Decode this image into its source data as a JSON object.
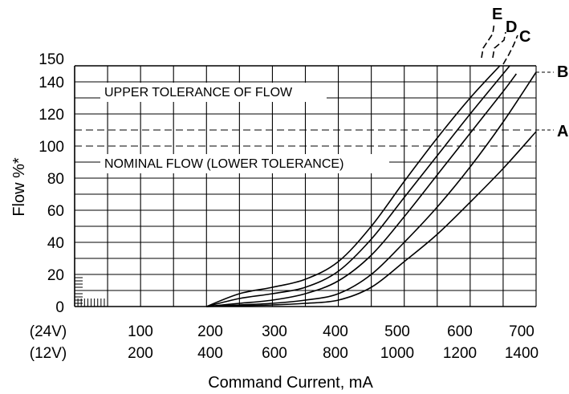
{
  "chart_data": {
    "type": "line",
    "xlabel": "Command Current, mA",
    "ylabel": "Flow %*",
    "xlim": [
      0,
      700
    ],
    "ylim": [
      0,
      150
    ],
    "x_tick_labels_24v": [
      "(24V)",
      "100",
      "200",
      "300",
      "400",
      "500",
      "600",
      "700"
    ],
    "x_tick_labels_12v": [
      "(12V)",
      "200",
      "400",
      "600",
      "800",
      "1000",
      "1200",
      "1400"
    ],
    "y_tick_labels": [
      "0",
      "20",
      "40",
      "60",
      "80",
      "100",
      "120",
      "140",
      "150"
    ],
    "reference_lines": [
      {
        "label": "UPPER TOLERANCE OF FLOW",
        "y": 110
      },
      {
        "label": "NOMINAL FLOW (LOWER TOLERANCE)",
        "y": 100
      }
    ],
    "series": [
      {
        "name": "E",
        "points": [
          [
            200,
            0
          ],
          [
            250,
            8
          ],
          [
            300,
            12
          ],
          [
            350,
            17
          ],
          [
            400,
            28
          ],
          [
            450,
            50
          ],
          [
            500,
            78
          ],
          [
            550,
            105
          ],
          [
            600,
            130
          ],
          [
            645,
            150
          ]
        ]
      },
      {
        "name": "D",
        "points": [
          [
            200,
            0
          ],
          [
            250,
            5
          ],
          [
            300,
            8
          ],
          [
            350,
            12
          ],
          [
            400,
            22
          ],
          [
            450,
            42
          ],
          [
            500,
            68
          ],
          [
            550,
            94
          ],
          [
            600,
            120
          ],
          [
            660,
            150
          ]
        ]
      },
      {
        "name": "C",
        "points": [
          [
            200,
            0
          ],
          [
            250,
            2
          ],
          [
            300,
            4
          ],
          [
            350,
            8
          ],
          [
            400,
            16
          ],
          [
            450,
            32
          ],
          [
            500,
            56
          ],
          [
            550,
            82
          ],
          [
            600,
            108
          ],
          [
            650,
            134
          ],
          [
            670,
            145
          ]
        ]
      },
      {
        "name": "B",
        "points": [
          [
            200,
            0
          ],
          [
            250,
            1
          ],
          [
            300,
            2
          ],
          [
            350,
            4
          ],
          [
            400,
            8
          ],
          [
            450,
            20
          ],
          [
            500,
            40
          ],
          [
            550,
            62
          ],
          [
            600,
            87
          ],
          [
            650,
            115
          ],
          [
            700,
            146
          ]
        ]
      },
      {
        "name": "A",
        "points": [
          [
            200,
            0
          ],
          [
            250,
            0.5
          ],
          [
            300,
            1
          ],
          [
            350,
            2
          ],
          [
            400,
            4
          ],
          [
            450,
            12
          ],
          [
            500,
            28
          ],
          [
            550,
            45
          ],
          [
            600,
            65
          ],
          [
            650,
            86
          ],
          [
            700,
            109
          ]
        ]
      }
    ]
  }
}
